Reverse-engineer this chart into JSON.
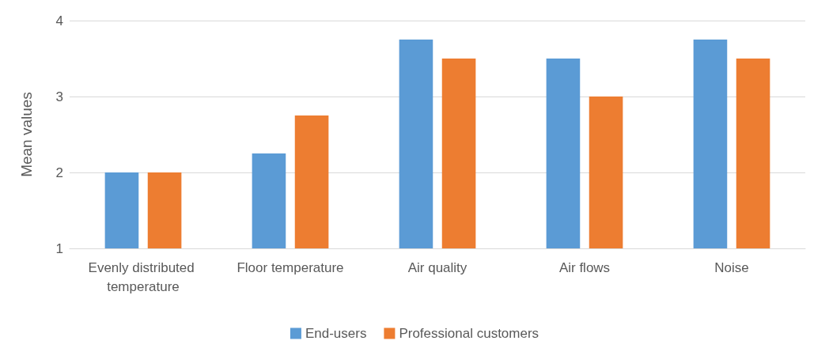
{
  "chart_data": {
    "type": "bar",
    "ylabel": "Mean values",
    "categories": [
      "Evenly distributed temperature",
      "Floor temperature",
      "Air quality",
      "Air flows",
      "Noise"
    ],
    "series": [
      {
        "name": "End-users",
        "color": "#5b9bd5",
        "values": [
          2,
          2.25,
          3.75,
          3.5,
          3.75
        ]
      },
      {
        "name": "Professional customers",
        "color": "#ed7d31",
        "values": [
          2,
          2.75,
          3.5,
          3,
          3.5
        ]
      }
    ],
    "ylim": [
      1,
      4
    ],
    "yticks": [
      1,
      2,
      3,
      4
    ],
    "grid": "y",
    "legend": "bottom"
  }
}
